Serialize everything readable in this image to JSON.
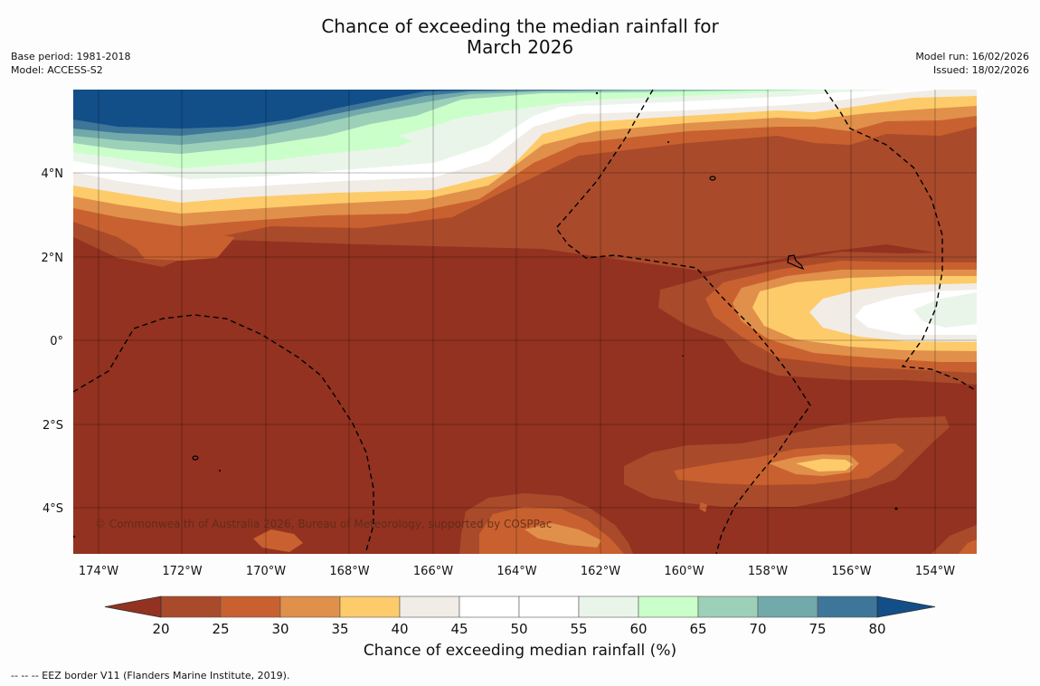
{
  "header": {
    "title_line1": "Chance of exceeding the median rainfall for",
    "title_line2": "March 2026",
    "base_period": "Base period: 1981-2018",
    "model": "Model: ACCESS-S2",
    "model_run": "Model run: 16/02/2026",
    "issued": "Issued: 18/02/2026"
  },
  "map": {
    "lat_labels": [
      "4°N",
      "2°N",
      "0°",
      "2°S",
      "4°S"
    ],
    "lon_labels": [
      "174°W",
      "172°W",
      "170°W",
      "168°W",
      "166°W",
      "164°W",
      "162°W",
      "160°W",
      "158°W",
      "156°W",
      "154°W"
    ],
    "copyright": "© Commonwealth of Australia 2026, Bureau of Meteorology, supported by COSPPac"
  },
  "colorbar": {
    "ticks": [
      "20",
      "25",
      "30",
      "35",
      "40",
      "45",
      "50",
      "55",
      "60",
      "65",
      "70",
      "75",
      "80"
    ],
    "colors": [
      "#a94a2b",
      "#c8612f",
      "#e0904a",
      "#fdcb6a",
      "#f1ece6",
      "#ffffff",
      "#ffffff",
      "#eaf5ea",
      "#caffca",
      "#9dd0b8",
      "#72a9aa",
      "#3e7699"
    ],
    "under_color": "#933220",
    "over_color": "#124e88",
    "title": "Chance of exceeding median rainfall (%)"
  },
  "footnote": "--  --  -- EEZ border V11 (Flanders Marine Institute, 2019)."
}
